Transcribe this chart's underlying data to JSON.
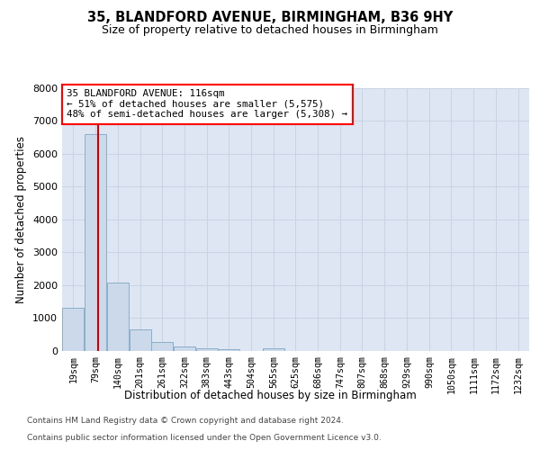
{
  "title": "35, BLANDFORD AVENUE, BIRMINGHAM, B36 9HY",
  "subtitle": "Size of property relative to detached houses in Birmingham",
  "xlabel": "Distribution of detached houses by size in Birmingham",
  "ylabel": "Number of detached properties",
  "footer_line1": "Contains HM Land Registry data © Crown copyright and database right 2024.",
  "footer_line2": "Contains public sector information licensed under the Open Government Licence v3.0.",
  "annotation_line1": "35 BLANDFORD AVENUE: 116sqm",
  "annotation_line2": "← 51% of detached houses are smaller (5,575)",
  "annotation_line3": "48% of semi-detached houses are larger (5,308) →",
  "bar_fill_color": "#ccd9ea",
  "bar_edge_color": "#8aafc8",
  "red_line_color": "#cc0000",
  "property_size": 116,
  "categories": [
    "19sqm",
    "79sqm",
    "140sqm",
    "201sqm",
    "261sqm",
    "322sqm",
    "383sqm",
    "443sqm",
    "504sqm",
    "565sqm",
    "625sqm",
    "686sqm",
    "747sqm",
    "807sqm",
    "868sqm",
    "929sqm",
    "990sqm",
    "1050sqm",
    "1111sqm",
    "1172sqm",
    "1232sqm"
  ],
  "bin_starts": [
    19,
    79,
    140,
    201,
    261,
    322,
    383,
    443,
    504,
    565,
    625,
    686,
    747,
    807,
    868,
    929,
    990,
    1050,
    1111,
    1172,
    1232
  ],
  "bin_width": 61,
  "values": [
    1300,
    6600,
    2080,
    660,
    280,
    130,
    90,
    65,
    0,
    95,
    0,
    0,
    0,
    0,
    0,
    0,
    0,
    0,
    0,
    0,
    0
  ],
  "ylim": [
    0,
    8000
  ],
  "yticks": [
    0,
    1000,
    2000,
    3000,
    4000,
    5000,
    6000,
    7000,
    8000
  ],
  "xlim_left": 19,
  "xlim_right": 1293,
  "grid_color": "#c8d4e4",
  "bg_color": "#dde6f2"
}
